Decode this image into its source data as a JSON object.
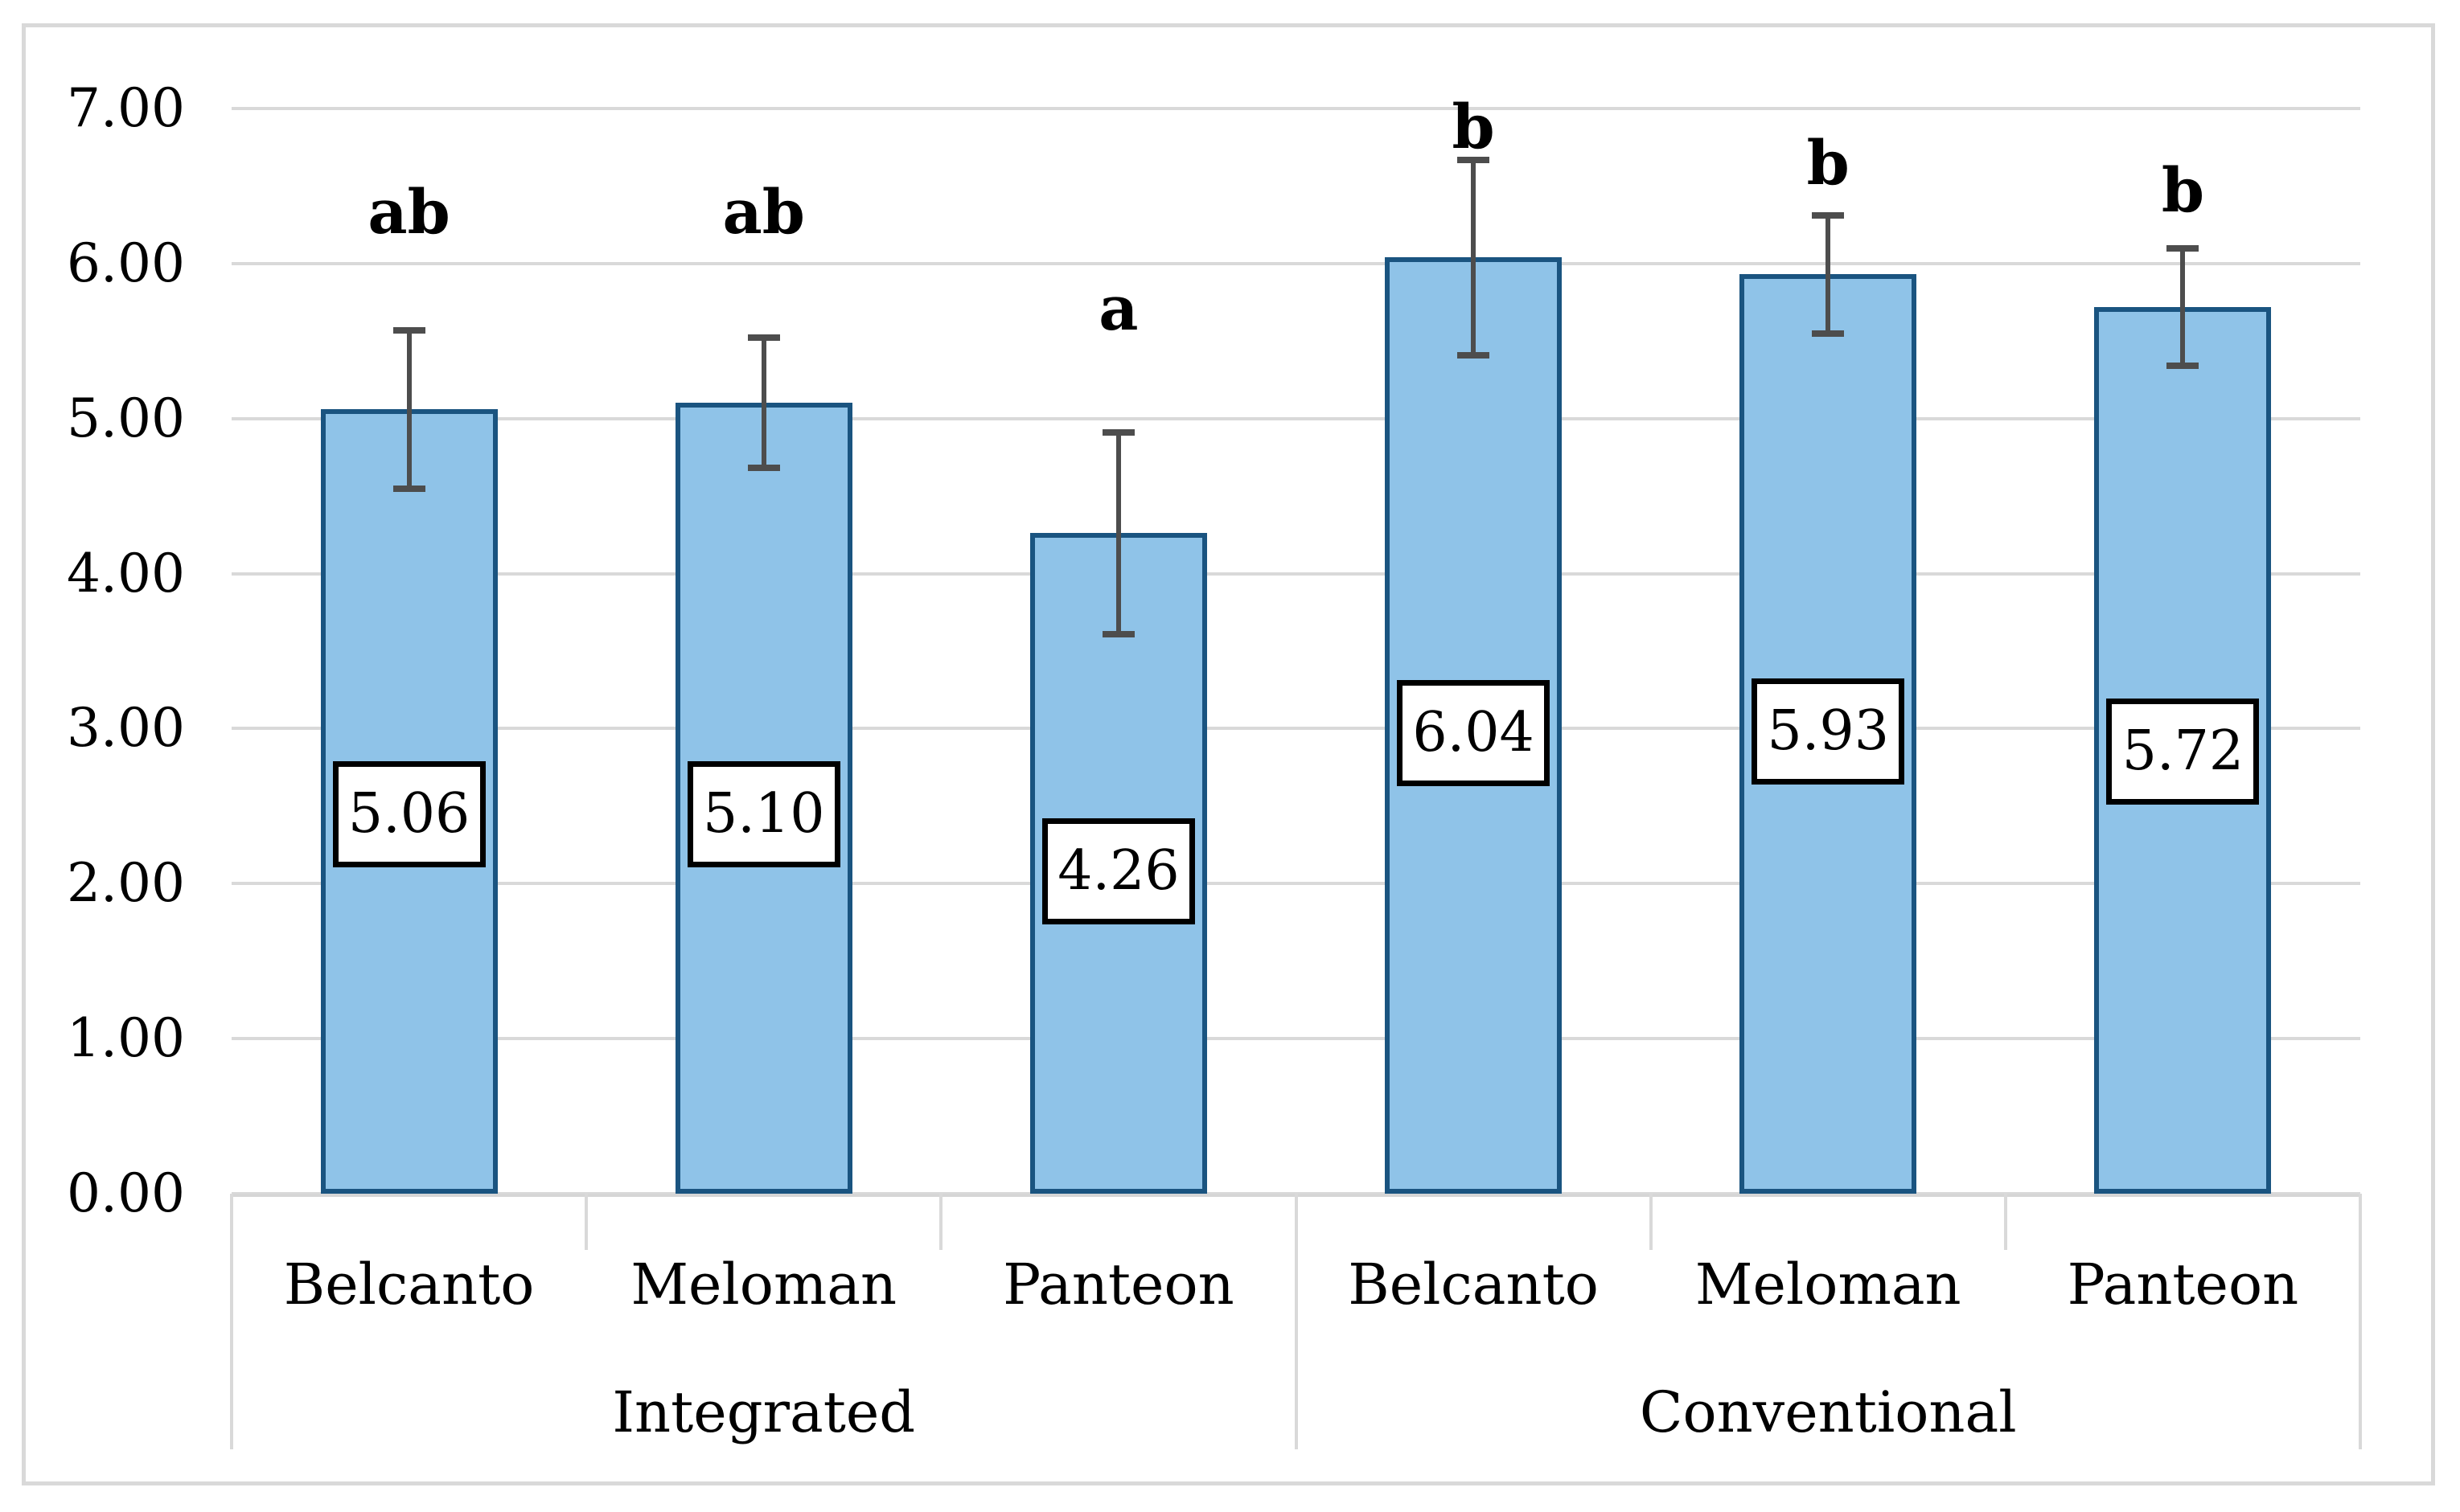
{
  "chart_data": {
    "type": "bar",
    "title": "",
    "xlabel": "",
    "ylabel": "",
    "ylim": [
      0,
      7
    ],
    "grid": true,
    "legend_position": "none",
    "y_tick_labels": [
      "0.00",
      "1.00",
      "2.00",
      "3.00",
      "4.00",
      "5.00",
      "6.00",
      "7.00"
    ],
    "groups": [
      {
        "label": "Integrated",
        "categories": [
          "Belcanto",
          "Meloman",
          "Panteon"
        ]
      },
      {
        "label": "Conventional",
        "categories": [
          "Belcanto",
          "Meloman",
          "Panteon"
        ]
      }
    ],
    "bars": [
      {
        "group": "Integrated",
        "category": "Belcanto",
        "value": 5.06,
        "value_label": "5.06",
        "error": 0.51,
        "error_top": 5.57,
        "error_bottom": 4.55,
        "sig_letter": "ab",
        "sig_letter_y": 6.33,
        "value_label_y": 2.45
      },
      {
        "group": "Integrated",
        "category": "Meloman",
        "value": 5.1,
        "value_label": "5.10",
        "error": 0.42,
        "error_top": 5.52,
        "error_bottom": 4.68,
        "sig_letter": "ab",
        "sig_letter_y": 6.33,
        "value_label_y": 2.45
      },
      {
        "group": "Integrated",
        "category": "Panteon",
        "value": 4.26,
        "value_label": "4.26",
        "error": 0.65,
        "error_top": 4.91,
        "error_bottom": 3.61,
        "sig_letter": "a",
        "sig_letter_y": 5.71,
        "value_label_y": 2.08
      },
      {
        "group": "Conventional",
        "category": "Belcanto",
        "value": 6.04,
        "value_label": "6.04",
        "error": 0.63,
        "error_top": 6.67,
        "error_bottom": 5.41,
        "sig_letter": "b",
        "sig_letter_y": 6.88,
        "value_label_y": 2.97
      },
      {
        "group": "Conventional",
        "category": "Meloman",
        "value": 5.93,
        "value_label": "5.93",
        "error": 0.38,
        "error_top": 6.31,
        "error_bottom": 5.55,
        "sig_letter": "b",
        "sig_letter_y": 6.65,
        "value_label_y": 2.98
      },
      {
        "group": "Conventional",
        "category": "Panteon",
        "value": 5.72,
        "value_label": "5.72",
        "error": 0.38,
        "error_top": 6.1,
        "error_bottom": 5.34,
        "sig_letter": "b",
        "sig_letter_y": 6.47,
        "value_label_y": 2.85
      }
    ],
    "colors": {
      "bar_fill": "#8fc3e8",
      "bar_border": "#1a5480",
      "error_bar": "#4d4d4d",
      "gridline": "#d9d9d9",
      "frame": "#d9d9d9",
      "value_box_border": "#000000",
      "value_box_fill": "#ffffff",
      "text": "#000000",
      "background": "#ffffff"
    }
  }
}
